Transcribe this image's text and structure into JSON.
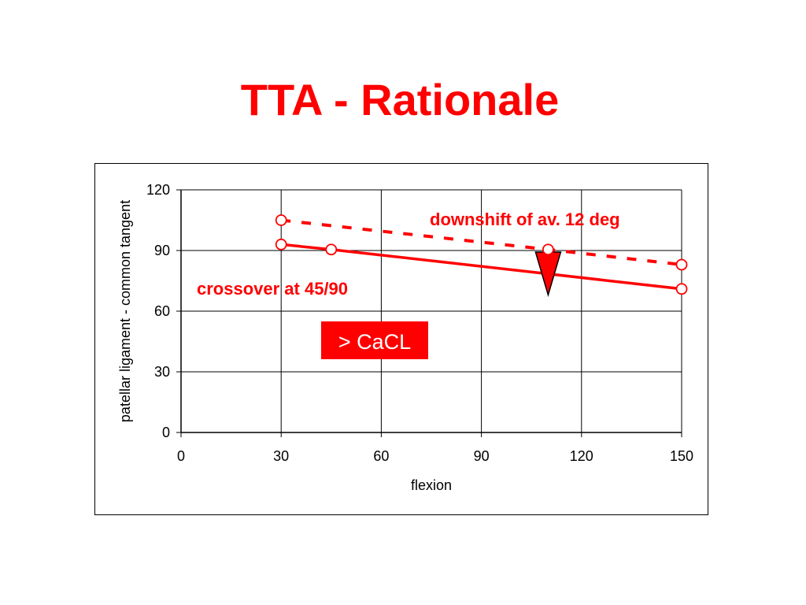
{
  "slide": {
    "title": "TTA - Rationale"
  },
  "colors": {
    "title": "#ff0000",
    "series": "#ff0000",
    "marker_fill": "#ffffff",
    "grid": "#000000",
    "box_fill": "#ff0000",
    "box_text": "#ffffff"
  },
  "chart_data": {
    "type": "line",
    "title": "",
    "xlabel": "flexion",
    "ylabel": "patellar ligament - common tangent",
    "xlim": [
      0,
      150
    ],
    "ylim": [
      0,
      120
    ],
    "xticks": [
      0,
      30,
      60,
      90,
      120,
      150
    ],
    "yticks": [
      0,
      30,
      60,
      90,
      120
    ],
    "grid": true,
    "series": [
      {
        "style": "dashed",
        "points": [
          {
            "x": 30,
            "y": 105
          },
          {
            "x": 110,
            "y": 90.5
          },
          {
            "x": 150,
            "y": 83
          }
        ]
      },
      {
        "style": "solid",
        "points": [
          {
            "x": 30,
            "y": 93
          },
          {
            "x": 45,
            "y": 90.5
          },
          {
            "x": 150,
            "y": 71
          }
        ]
      }
    ],
    "annotations": [
      {
        "text": "downshift of av. 12 deg",
        "style": "bold-red"
      },
      {
        "text": "crossover at 45/90",
        "style": "bold-red"
      },
      {
        "text": "> CaCL",
        "style": "boxed"
      }
    ],
    "arrow": {
      "x": 110,
      "y_from": 90,
      "y_to": 68,
      "direction": "down"
    }
  }
}
